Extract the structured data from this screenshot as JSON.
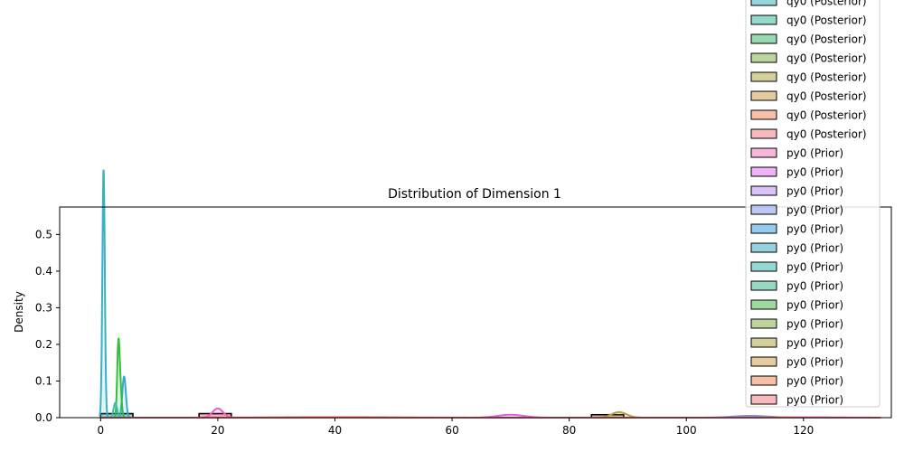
{
  "chart_data": {
    "type": "area",
    "title": "Distribution of Dimension 1",
    "xlabel": "",
    "ylabel": "Density",
    "xlim": [
      -7,
      135
    ],
    "ylim": [
      0,
      0.575
    ],
    "xticks": [
      0,
      20,
      40,
      60,
      80,
      100,
      120
    ],
    "yticks": [
      0.0,
      0.1,
      0.2,
      0.3,
      0.4,
      0.5
    ],
    "ytick_labels": [
      "0.0",
      "0.1",
      "0.2",
      "0.3",
      "0.4",
      "0.5"
    ],
    "grid": false,
    "legend_placement": "top-right",
    "legend": [
      {
        "label": "qy0 (Posterior)",
        "color": "#4fb9c4"
      },
      {
        "label": "qy0 (Posterior)",
        "color": "#4fbca4"
      },
      {
        "label": "qy0 (Posterior)",
        "color": "#55bf7f"
      },
      {
        "label": "qy0 (Posterior)",
        "color": "#8fb85c"
      },
      {
        "label": "qy0 (Posterior)",
        "color": "#b5b15c"
      },
      {
        "label": "qy0 (Posterior)",
        "color": "#d2a95e"
      },
      {
        "label": "qy0 (Posterior)",
        "color": "#f0966e"
      },
      {
        "label": "qy0 (Posterior)",
        "color": "#f38b91"
      },
      {
        "label": "py0 (Prior)",
        "color": "#f083c0"
      },
      {
        "label": "py0 (Prior)",
        "color": "#e67ef0"
      },
      {
        "label": "py0 (Prior)",
        "color": "#c09af0"
      },
      {
        "label": "py0 (Prior)",
        "color": "#8fa5ec"
      },
      {
        "label": "py0 (Prior)",
        "color": "#4fa9e0"
      },
      {
        "label": "py0 (Prior)",
        "color": "#4fb4c8"
      },
      {
        "label": "py0 (Prior)",
        "color": "#4fbcb5"
      },
      {
        "label": "py0 (Prior)",
        "color": "#52bf96"
      },
      {
        "label": "py0 (Prior)",
        "color": "#5bbf5f"
      },
      {
        "label": "py0 (Prior)",
        "color": "#95b85c"
      },
      {
        "label": "py0 (Prior)",
        "color": "#b6b15c"
      },
      {
        "label": "py0 (Prior)",
        "color": "#d4a95e"
      },
      {
        "label": "py0 (Prior)",
        "color": "#f0966e"
      },
      {
        "label": "py0 (Prior)",
        "color": "#f38b91"
      }
    ],
    "series": [
      {
        "color": "#3ab0c4",
        "peaks": [
          {
            "mu": 0.5,
            "sigma": 0.2,
            "height": 0.55
          },
          {
            "mu": 0.5,
            "sigma": 0.25,
            "height": 0.127
          }
        ]
      },
      {
        "color": "#3aa8d0",
        "peaks": [
          {
            "mu": 4.0,
            "sigma": 0.3,
            "height": 0.112
          }
        ]
      },
      {
        "color": "#2fbf3a",
        "peaks": [
          {
            "mu": 3.0,
            "sigma": 0.2,
            "height": 0.163
          },
          {
            "mu": 3.3,
            "sigma": 0.25,
            "height": 0.095
          }
        ]
      },
      {
        "color": "#3cbcae",
        "peaks": [
          {
            "mu": 2.5,
            "sigma": 0.3,
            "height": 0.04
          }
        ]
      },
      {
        "color": "#f060c0",
        "peaks": [
          {
            "mu": 20.0,
            "sigma": 0.9,
            "height": 0.025
          }
        ]
      },
      {
        "color": "#f0a060",
        "peaks": [
          {
            "mu": 40.0,
            "sigma": 10.0,
            "height": 0.002
          }
        ]
      },
      {
        "color": "#e060e0",
        "peaks": [
          {
            "mu": 70.0,
            "sigma": 2.2,
            "height": 0.008
          }
        ]
      },
      {
        "color": "#b8a040",
        "peaks": [
          {
            "mu": 88.5,
            "sigma": 1.3,
            "height": 0.015
          }
        ]
      },
      {
        "color": "#8090e8",
        "peaks": [
          {
            "mu": 111.0,
            "sigma": 3.0,
            "height": 0.005
          }
        ]
      },
      {
        "color": "#f07080",
        "peaks": [
          {
            "mu": 120.0,
            "sigma": 6.0,
            "height": 0.001
          }
        ]
      }
    ],
    "histogram_bars": [
      {
        "x0": 0.0,
        "x1": 5.5,
        "height": 0.011,
        "color": "#4fb9c4"
      },
      {
        "x0": 16.8,
        "x1": 22.3,
        "height": 0.011,
        "color": "#f38b91"
      },
      {
        "x0": 83.8,
        "x1": 89.3,
        "height": 0.008,
        "color": "#b5b15c"
      }
    ]
  }
}
